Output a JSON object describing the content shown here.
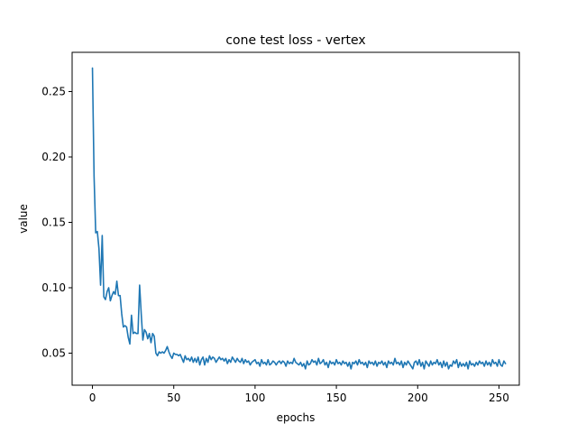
{
  "chart_data": {
    "type": "line",
    "title": "cone test loss - vertex",
    "xlabel": "epochs",
    "ylabel": "value",
    "xlim": [
      -12.5,
      262.5
    ],
    "ylim": [
      0.0255,
      0.28
    ],
    "xticks": [
      0,
      50,
      100,
      150,
      200,
      250
    ],
    "yticks": [
      0.05,
      0.1,
      0.15,
      0.2,
      0.25
    ],
    "ytick_labels": [
      "0.05",
      "0.10",
      "0.15",
      "0.20",
      "0.25"
    ],
    "grid": false,
    "line_color": "#1f77b4",
    "series": [
      {
        "values": [
          0.268,
          0.185,
          0.142,
          0.143,
          0.13,
          0.102,
          0.14,
          0.093,
          0.091,
          0.097,
          0.1,
          0.09,
          0.094,
          0.097,
          0.095,
          0.105,
          0.094,
          0.094,
          0.08,
          0.07,
          0.071,
          0.07,
          0.062,
          0.057,
          0.079,
          0.065,
          0.066,
          0.065,
          0.065,
          0.102,
          0.08,
          0.06,
          0.068,
          0.066,
          0.061,
          0.065,
          0.058,
          0.065,
          0.063,
          0.05,
          0.048,
          0.051,
          0.05,
          0.051,
          0.05,
          0.052,
          0.055,
          0.051,
          0.048,
          0.046,
          0.05,
          0.049,
          0.049,
          0.048,
          0.049,
          0.046,
          0.043,
          0.048,
          0.045,
          0.046,
          0.044,
          0.047,
          0.043,
          0.046,
          0.043,
          0.047,
          0.041,
          0.045,
          0.047,
          0.041,
          0.046,
          0.043,
          0.048,
          0.045,
          0.047,
          0.046,
          0.043,
          0.045,
          0.047,
          0.045,
          0.046,
          0.044,
          0.046,
          0.042,
          0.045,
          0.043,
          0.047,
          0.045,
          0.043,
          0.046,
          0.044,
          0.043,
          0.046,
          0.042,
          0.045,
          0.043,
          0.044,
          0.041,
          0.043,
          0.044,
          0.045,
          0.042,
          0.043,
          0.04,
          0.045,
          0.042,
          0.043,
          0.041,
          0.045,
          0.041,
          0.042,
          0.044,
          0.043,
          0.041,
          0.043,
          0.044,
          0.042,
          0.044,
          0.043,
          0.04,
          0.044,
          0.042,
          0.043,
          0.042,
          0.046,
          0.043,
          0.042,
          0.041,
          0.043,
          0.04,
          0.042,
          0.038,
          0.044,
          0.041,
          0.042,
          0.045,
          0.043,
          0.044,
          0.041,
          0.046,
          0.042,
          0.043,
          0.045,
          0.041,
          0.043,
          0.039,
          0.044,
          0.042,
          0.043,
          0.041,
          0.045,
          0.042,
          0.043,
          0.041,
          0.044,
          0.042,
          0.043,
          0.04,
          0.043,
          0.038,
          0.043,
          0.042,
          0.044,
          0.041,
          0.045,
          0.042,
          0.043,
          0.041,
          0.043,
          0.039,
          0.044,
          0.042,
          0.043,
          0.041,
          0.044,
          0.04,
          0.043,
          0.042,
          0.044,
          0.041,
          0.043,
          0.039,
          0.044,
          0.042,
          0.043,
          0.041,
          0.046,
          0.042,
          0.043,
          0.041,
          0.044,
          0.039,
          0.043,
          0.041,
          0.044,
          0.042,
          0.04,
          0.038,
          0.043,
          0.044,
          0.041,
          0.045,
          0.04,
          0.043,
          0.038,
          0.044,
          0.042,
          0.04,
          0.044,
          0.041,
          0.043,
          0.042,
          0.045,
          0.041,
          0.043,
          0.039,
          0.044,
          0.04,
          0.043,
          0.038,
          0.041,
          0.04,
          0.044,
          0.042,
          0.045,
          0.039,
          0.043,
          0.04,
          0.042,
          0.04,
          0.043,
          0.038,
          0.044,
          0.041,
          0.042,
          0.04,
          0.043,
          0.041,
          0.044,
          0.042,
          0.043,
          0.04,
          0.044,
          0.041,
          0.043,
          0.04,
          0.045,
          0.042,
          0.043,
          0.04,
          0.045,
          0.041,
          0.04,
          0.044,
          0.042
        ]
      }
    ]
  }
}
